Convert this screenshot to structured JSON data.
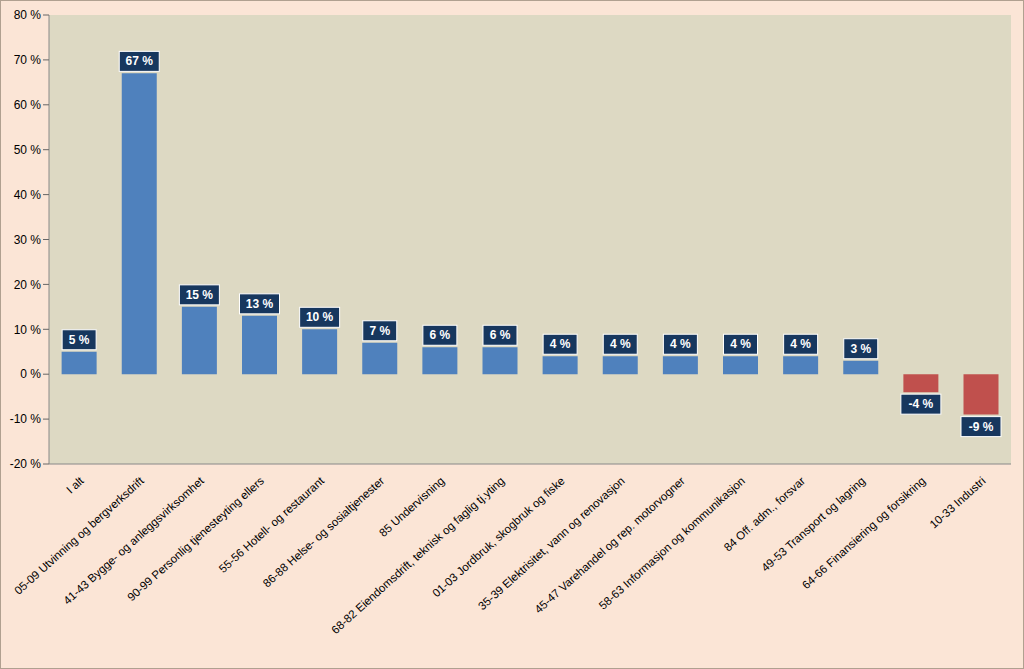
{
  "chart_data": {
    "type": "bar",
    "categories": [
      "I alt",
      "05-09 Utvinning og bergverksdrift",
      "41-43 Bygge- og anleggsvirksomhet",
      "90-99 Personlig tjenesteyting ellers",
      "55-56 Hotell- og restaurant",
      "86-88 Helse- og sosialtjenester",
      "85 Undervisning",
      "68-82 Eiendomsdrift, teknisk og faglig tj.yting",
      "01-03 Jordbruk, skogbruk og fiske",
      "35-39 Elektrisitet, vann og renovasjon",
      "45-47 Varehandel og rep. motorvogner",
      "58-63 Informasjon og kommunikasjon",
      "84 Off. adm., forsvar",
      "49-53 Transport og lagring",
      "64-66 Finansiering og forsikring",
      "10-33 Industri"
    ],
    "values": [
      5,
      67,
      15,
      13,
      10,
      7,
      6,
      6,
      4,
      4,
      4,
      4,
      4,
      3,
      -4,
      -9
    ],
    "value_labels": [
      "5 %",
      "67 %",
      "15 %",
      "13 %",
      "10 %",
      "7 %",
      "6 %",
      "6 %",
      "4 %",
      "4 %",
      "4 %",
      "4 %",
      "4 %",
      "3 %",
      "-4 %",
      "-9 %"
    ],
    "colors": [
      "#4f81bd",
      "#4f81bd",
      "#4f81bd",
      "#4f81bd",
      "#4f81bd",
      "#4f81bd",
      "#4f81bd",
      "#4f81bd",
      "#4f81bd",
      "#4f81bd",
      "#4f81bd",
      "#4f81bd",
      "#4f81bd",
      "#4f81bd",
      "#c0504d",
      "#c0504d"
    ],
    "ylim": [
      -20,
      80
    ],
    "yticks": [
      {
        "value": -20,
        "label": "-20 %"
      },
      {
        "value": -10,
        "label": "-10 %"
      },
      {
        "value": 0,
        "label": "0 %"
      },
      {
        "value": 10,
        "label": "10 %"
      },
      {
        "value": 20,
        "label": "20 %"
      },
      {
        "value": 30,
        "label": "30 %"
      },
      {
        "value": 40,
        "label": "40 %"
      },
      {
        "value": 50,
        "label": "50 %"
      },
      {
        "value": 60,
        "label": "60 %"
      },
      {
        "value": 70,
        "label": "70 %"
      },
      {
        "value": 80,
        "label": "80 %"
      }
    ],
    "data_labels": true,
    "grid": false
  }
}
